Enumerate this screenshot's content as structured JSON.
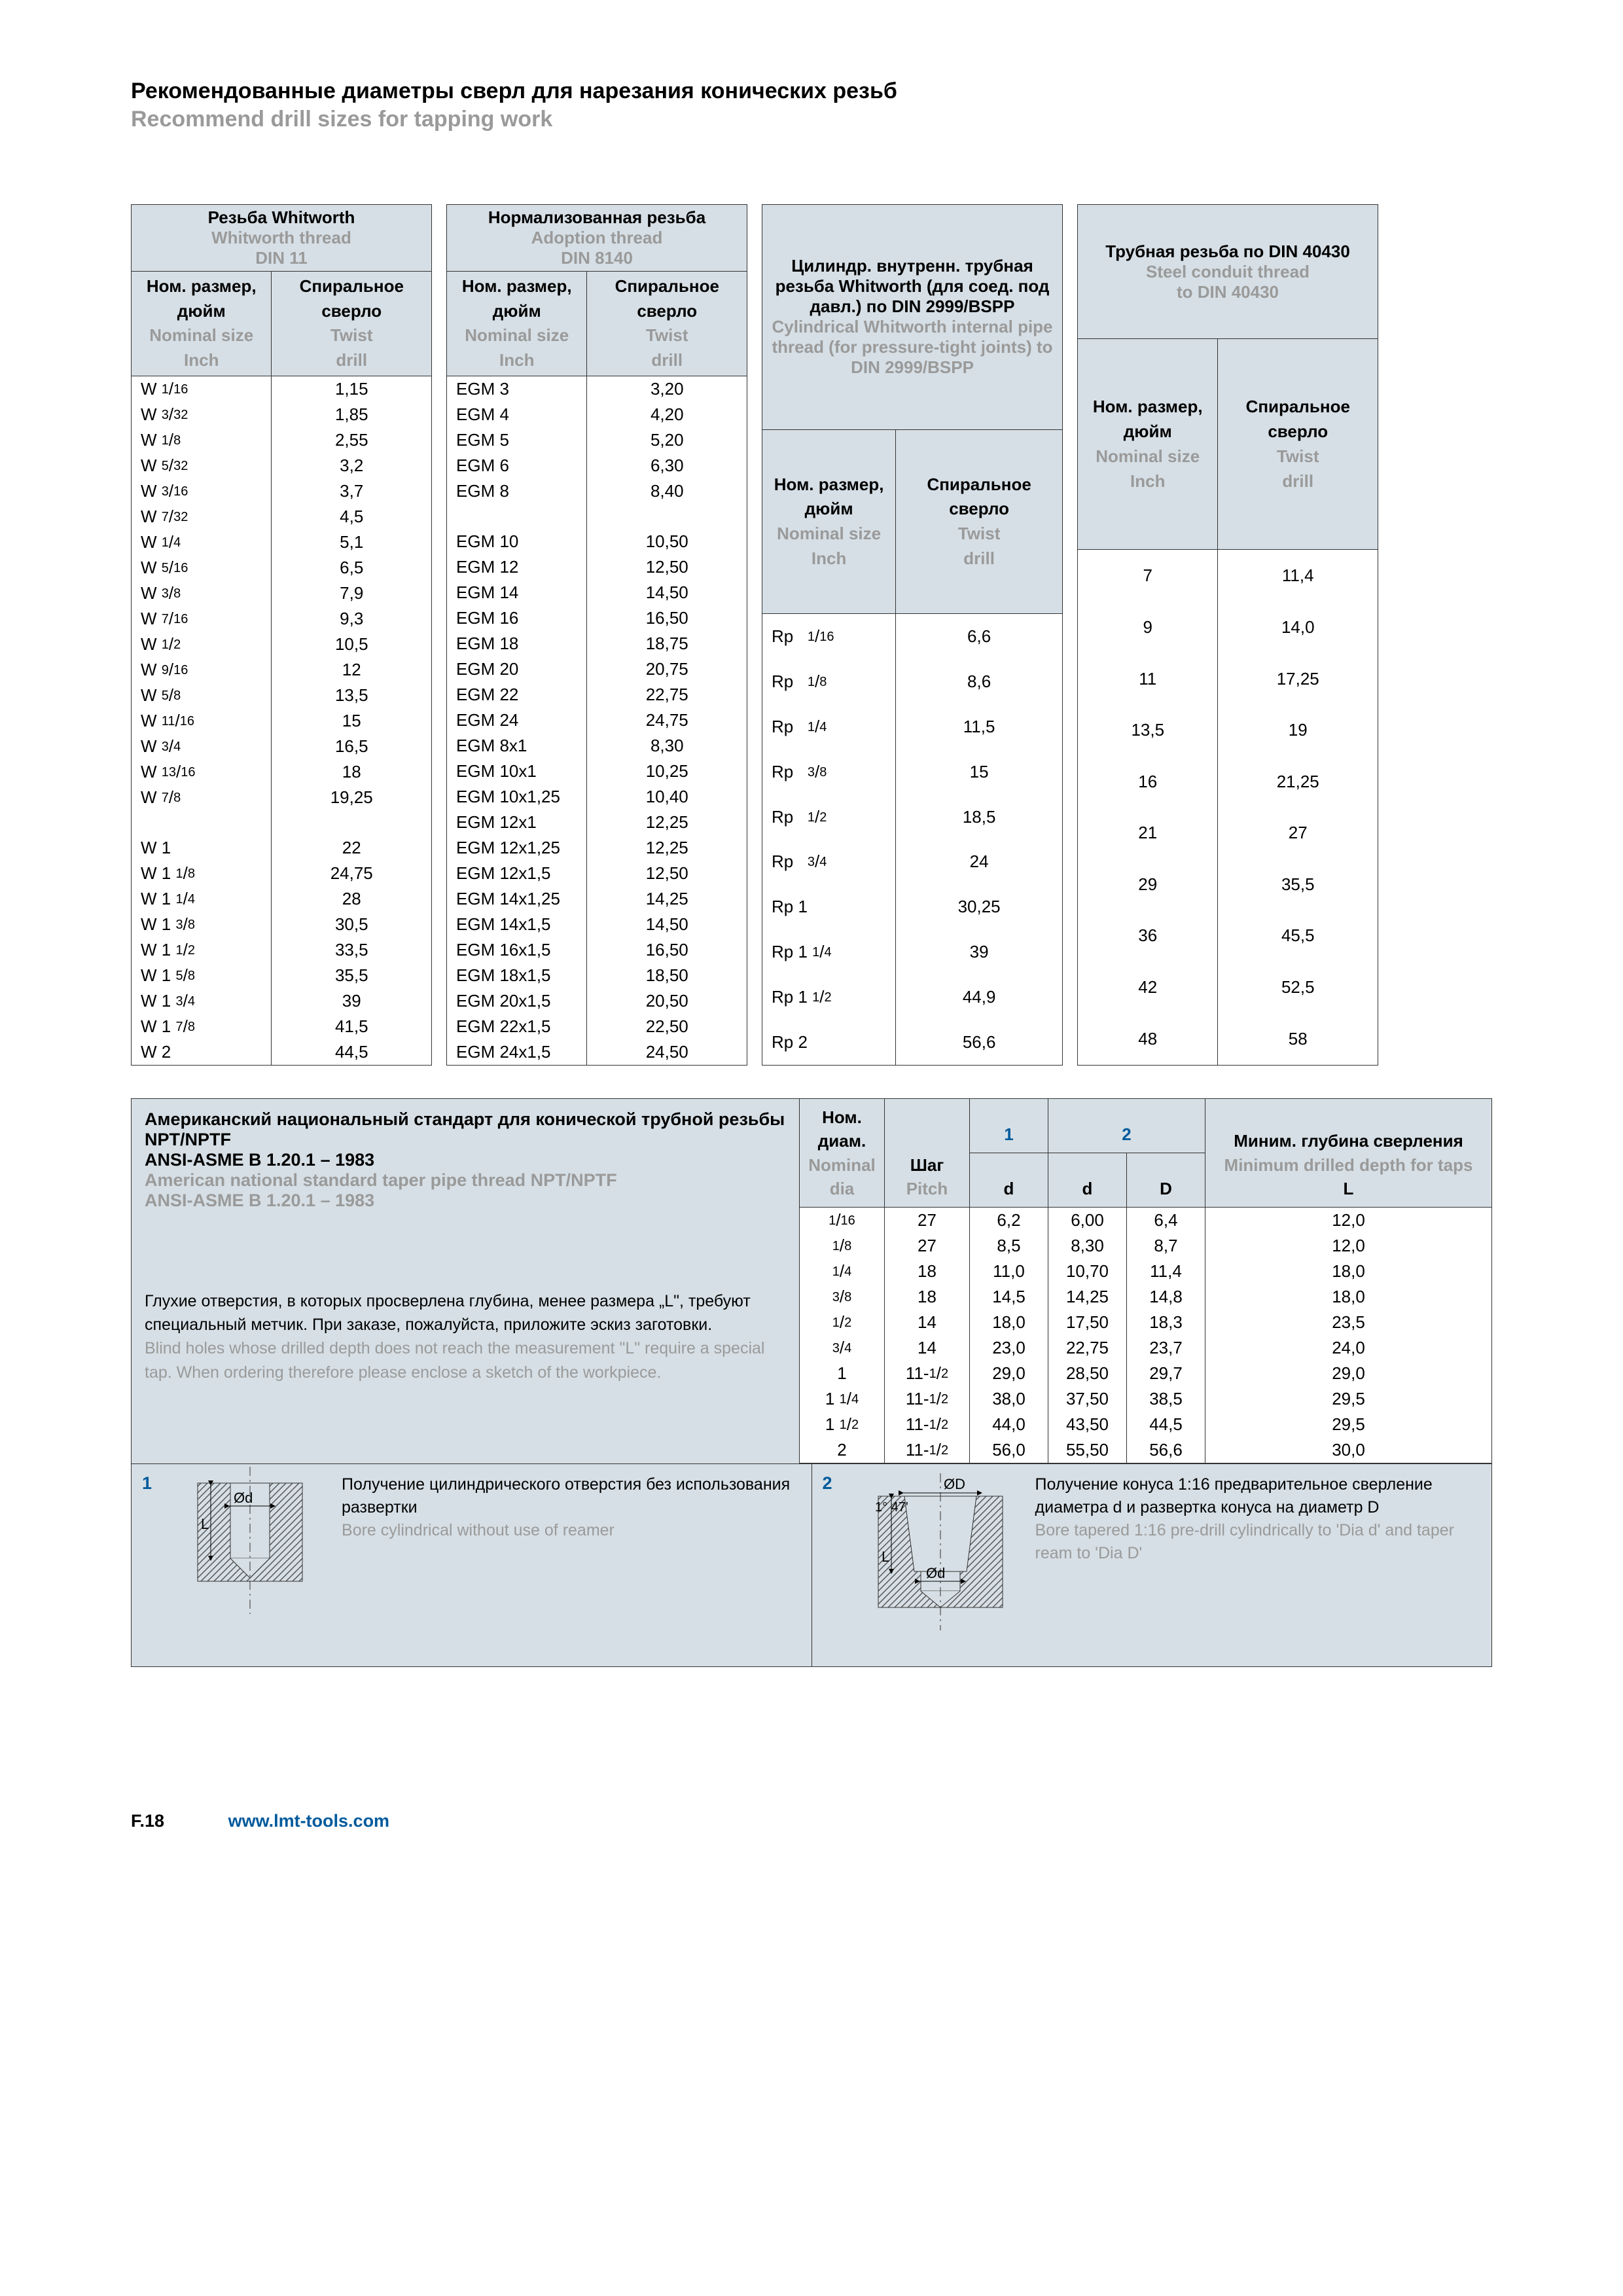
{
  "page": {
    "title_ru": "Рекомендованные диаметры сверл для нарезания конических резьб",
    "title_en": "Recommend drill sizes for tapping work",
    "footer_page": "F.18",
    "footer_url": "www.lmt-tools.com"
  },
  "col_headers": {
    "size_ru": "Ном. размер, дюйм",
    "size_en1": "Nominal size",
    "size_en2": "Inch",
    "drill_ru": "Спиральное сверло",
    "drill_en1": "Twist",
    "drill_en2": "drill"
  },
  "tables": [
    {
      "header_ru": "Резьба Whitworth",
      "header_en1": "Whitworth thread",
      "header_en2": "DIN 11",
      "rows": [
        {
          "s": "W 1/16",
          "d": "1,15"
        },
        {
          "s": "W 3/32",
          "d": "1,85"
        },
        {
          "s": "W 1/8",
          "d": "2,55"
        },
        {
          "s": "W 5/32",
          "d": "3,2"
        },
        {
          "s": "W 3/16",
          "d": "3,7"
        },
        {
          "s": "W 7/32",
          "d": "4,5"
        },
        {
          "s": "W 1/4",
          "d": "5,1"
        },
        {
          "s": "W 5/16",
          "d": "6,5"
        },
        {
          "s": "W 3/8",
          "d": "7,9"
        },
        {
          "s": "W 7/16",
          "d": "9,3"
        },
        {
          "s": "W 1/2",
          "d": "10,5"
        },
        {
          "s": "W 9/16",
          "d": "12"
        },
        {
          "s": "W 5/8",
          "d": "13,5"
        },
        {
          "s": "W 11/16",
          "d": "15"
        },
        {
          "s": "W 3/4",
          "d": "16,5"
        },
        {
          "s": "W 13/16",
          "d": "18"
        },
        {
          "s": "W 7/8",
          "d": "19,25"
        },
        {
          "s": "",
          "d": ""
        },
        {
          "s": "W 1",
          "d": "22"
        },
        {
          "s": "W 1 1/8",
          "d": "24,75"
        },
        {
          "s": "W 1 1/4",
          "d": "28"
        },
        {
          "s": "W 1 3/8",
          "d": "30,5"
        },
        {
          "s": "W 1 1/2",
          "d": "33,5"
        },
        {
          "s": "W 1 5/8",
          "d": "35,5"
        },
        {
          "s": "W 1 3/4",
          "d": "39"
        },
        {
          "s": "W 1 7/8",
          "d": "41,5"
        },
        {
          "s": "W 2",
          "d": "44,5"
        }
      ]
    },
    {
      "header_ru": "Нормализованная резьба",
      "header_en1": "Adoption thread",
      "header_en2": "DIN 8140",
      "rows": [
        {
          "s": "EGM 3",
          "d": "3,20"
        },
        {
          "s": "EGM 4",
          "d": "4,20"
        },
        {
          "s": "EGM 5",
          "d": "5,20"
        },
        {
          "s": "EGM 6",
          "d": "6,30"
        },
        {
          "s": "EGM 8",
          "d": "8,40"
        },
        {
          "s": "",
          "d": ""
        },
        {
          "s": "EGM 10",
          "d": "10,50"
        },
        {
          "s": "EGM 12",
          "d": "12,50"
        },
        {
          "s": "EGM 14",
          "d": "14,50"
        },
        {
          "s": "EGM 16",
          "d": "16,50"
        },
        {
          "s": "EGM 18",
          "d": "18,75"
        },
        {
          "s": "EGM 20",
          "d": "20,75"
        },
        {
          "s": "EGM 22",
          "d": "22,75"
        },
        {
          "s": "EGM 24",
          "d": "24,75"
        },
        {
          "s": "EGM 8x1",
          "d": "8,30"
        },
        {
          "s": "EGM 10x1",
          "d": "10,25"
        },
        {
          "s": "EGM 10x1,25",
          "d": "10,40"
        },
        {
          "s": "EGM 12x1",
          "d": "12,25"
        },
        {
          "s": "EGM 12x1,25",
          "d": "12,25"
        },
        {
          "s": "EGM 12x1,5",
          "d": "12,50"
        },
        {
          "s": "EGM 14x1,25",
          "d": "14,25"
        },
        {
          "s": "EGM 14x1,5",
          "d": "14,50"
        },
        {
          "s": "EGM 16x1,5",
          "d": "16,50"
        },
        {
          "s": "EGM 18x1,5",
          "d": "18,50"
        },
        {
          "s": "EGM 20x1,5",
          "d": "20,50"
        },
        {
          "s": "EGM 22x1,5",
          "d": "22,50"
        },
        {
          "s": "EGM 24x1,5",
          "d": "24,50"
        }
      ]
    },
    {
      "header_ru": "Цилиндр. внутренн. трубная резьба Whitworth (для соед. под давл.) по DIN 2999/BSPP",
      "header_en1": "Cylindrical Whitworth internal pipe thread (for pressure-tight joints) to DIN 2999/BSPP",
      "header_en2": "",
      "rows": [
        {
          "s": "Rp   1/16",
          "d": "6,6"
        },
        {
          "s": "Rp   1/8",
          "d": "8,6"
        },
        {
          "s": "Rp   1/4",
          "d": "11,5"
        },
        {
          "s": "Rp   3/8",
          "d": "15"
        },
        {
          "s": "Rp   1/2",
          "d": "18,5"
        },
        {
          "s": "Rp   3/4",
          "d": "24"
        },
        {
          "s": "Rp 1",
          "d": "30,25"
        },
        {
          "s": "Rp 1 1/4",
          "d": "39"
        },
        {
          "s": "Rp 1 1/2",
          "d": "44,9"
        },
        {
          "s": "Rp 2",
          "d": "56,6"
        }
      ]
    },
    {
      "header_ru": "Трубная резьба по DIN 40430",
      "header_en1": "Steel conduit thread",
      "header_en2": "to DIN 40430",
      "rows": [
        {
          "s": "7",
          "d": "11,4"
        },
        {
          "s": "9",
          "d": "14,0"
        },
        {
          "s": "11",
          "d": "17,25"
        },
        {
          "s": "13,5",
          "d": "19"
        },
        {
          "s": "16",
          "d": "21,25"
        },
        {
          "s": "21",
          "d": "27"
        },
        {
          "s": "29",
          "d": "35,5"
        },
        {
          "s": "36",
          "d": "45,5"
        },
        {
          "s": "42",
          "d": "52,5"
        },
        {
          "s": "48",
          "d": "58"
        }
      ]
    }
  ],
  "npt": {
    "title_ru1": "Американский национальный стандарт для конической трубной резьбы NPT/NPTF",
    "title_ru2": "ANSI-ASME B 1.20.1 – 1983",
    "title_en1": "American national standard taper pipe thread NPT/NPTF",
    "title_en2": "ANSI-ASME B 1.20.1 – 1983",
    "note_ru": "Глухие отверстия, в которых просверлена глубина, менее размера „L\", требуют специальный метчик. При заказе, пожалуйста, приложите эскиз заготовки.",
    "note_en": "Blind holes whose drilled depth does not reach the measurement \"L\" require a special tap. When ordering therefore please enclose a sketch of the workpiece.",
    "headers": {
      "nom_ru": "Ном. диам.",
      "nom_en": "Nominal dia",
      "pitch_ru": "Шаг",
      "pitch_en": "Pitch",
      "one": "1",
      "one_d": "d",
      "two": "2",
      "two_d": "d",
      "two_D": "D",
      "depth_ru": "Миним. глубина сверления",
      "depth_en": "Minimum drilled depth for taps",
      "L": "L"
    },
    "rows": [
      {
        "n": "1/16",
        "p": "27",
        "d1": "6,2",
        "d2": "6,00",
        "D": "6,4",
        "L": "12,0"
      },
      {
        "n": "1/8",
        "p": "27",
        "d1": "8,5",
        "d2": "8,30",
        "D": "8,7",
        "L": "12,0"
      },
      {
        "n": "1/4",
        "p": "18",
        "d1": "11,0",
        "d2": "10,70",
        "D": "11,4",
        "L": "18,0"
      },
      {
        "n": "3/8",
        "p": "18",
        "d1": "14,5",
        "d2": "14,25",
        "D": "14,8",
        "L": "18,0"
      },
      {
        "n": "1/2",
        "p": "14",
        "d1": "18,0",
        "d2": "17,50",
        "D": "18,3",
        "L": "23,5"
      },
      {
        "n": "3/4",
        "p": "14",
        "d1": "23,0",
        "d2": "22,75",
        "D": "23,7",
        "L": "24,0"
      },
      {
        "n": "1",
        "p": "11-1/2",
        "d1": "29,0",
        "d2": "28,50",
        "D": "29,7",
        "L": "29,0"
      },
      {
        "n": "1 1/4",
        "p": "11-1/2",
        "d1": "38,0",
        "d2": "37,50",
        "D": "38,5",
        "L": "29,5"
      },
      {
        "n": "1 1/2",
        "p": "11-1/2",
        "d1": "44,0",
        "d2": "43,50",
        "D": "44,5",
        "L": "29,5"
      },
      {
        "n": "2",
        "p": "11-1/2",
        "d1": "56,0",
        "d2": "55,50",
        "D": "56,6",
        "L": "30,0"
      }
    ]
  },
  "diagrams": {
    "d1_num": "1",
    "d1_ru": "Получение цилиндрического отверстия  без использования развертки",
    "d1_en": "Bore cylindrical without use of reamer",
    "d2_num": "2",
    "d2_ru": "Получение конуса 1:16 предварительное сверление диаметра d и развертка конуса на диаметр D",
    "d2_en": "Bore tapered 1:16\npre-drill cylindrically to 'Dia d' and taper ream to 'Dia D'"
  }
}
